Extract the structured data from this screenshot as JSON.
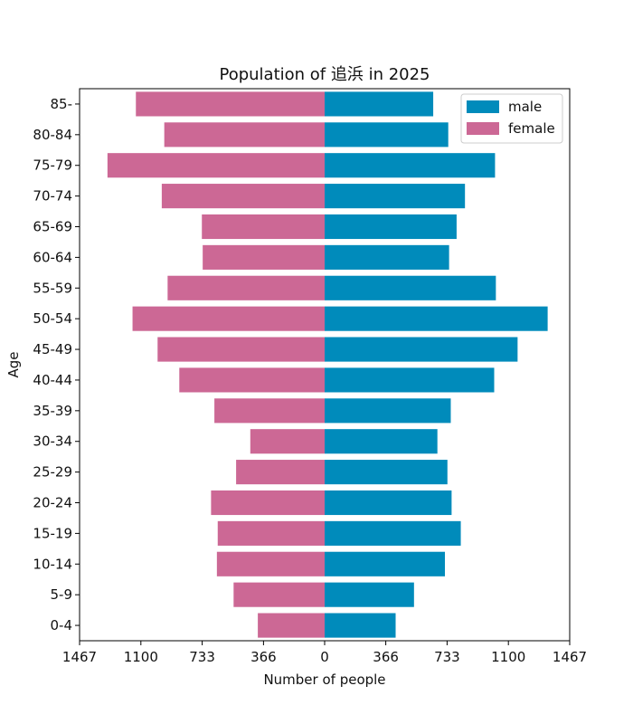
{
  "chart_data": {
    "type": "bar",
    "orientation": "horizontal",
    "title": "Population of 追浜 in 2025",
    "xlabel": "Number of people",
    "ylabel": "Age",
    "xlim": [
      -1467,
      1467
    ],
    "xticks": [
      -1467,
      -1100,
      -733,
      -366,
      0,
      366,
      733,
      1100,
      1467
    ],
    "xtick_labels": [
      "1467",
      "1100",
      "733",
      "366",
      "0",
      "366",
      "733",
      "1100",
      "1467"
    ],
    "categories": [
      "0-4",
      "5-9",
      "10-14",
      "15-19",
      "20-24",
      "25-29",
      "30-34",
      "35-39",
      "40-44",
      "45-49",
      "50-54",
      "55-59",
      "60-64",
      "65-69",
      "70-74",
      "75-79",
      "80-84",
      "85-"
    ],
    "series": [
      {
        "name": "male",
        "color": "#008bbb",
        "values": [
          425,
          535,
          720,
          815,
          760,
          735,
          675,
          755,
          1015,
          1155,
          1335,
          1025,
          745,
          790,
          840,
          1020,
          740,
          650
        ]
      },
      {
        "name": "female",
        "color": "#cc6895",
        "values": [
          400,
          545,
          645,
          640,
          680,
          530,
          445,
          660,
          870,
          1000,
          1150,
          940,
          730,
          735,
          975,
          1300,
          960,
          1130
        ]
      }
    ],
    "legend_position": "top-right",
    "grid": false
  }
}
